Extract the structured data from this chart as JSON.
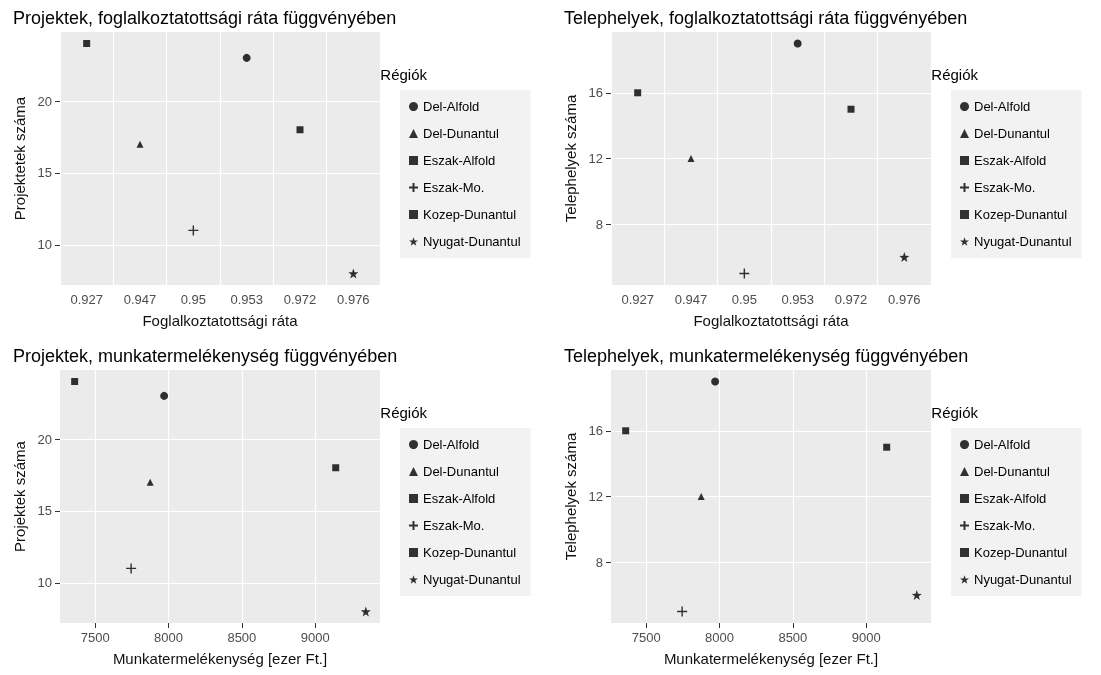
{
  "chart_data": [
    {
      "type": "scatter",
      "title": "Projektek, foglalkoztatottsági ráta függvényében",
      "xlabel": "Foglalkoztatottsági ráta",
      "ylabel": "Projektetek száma",
      "legend_title": "Régiók",
      "legend": "right",
      "grid": true,
      "categories": [
        "0.927",
        "0.947",
        "0.95",
        "0.953",
        "0.972",
        "0.976"
      ],
      "ylim": [
        7.2,
        24.8
      ],
      "yticks": [
        10,
        15,
        20
      ],
      "series": [
        {
          "name": "Del-Alfold",
          "color": "#000000",
          "marker": "circle",
          "x": [
            "0.953"
          ],
          "values": [
            23
          ]
        },
        {
          "name": "Del-Dunantul",
          "color": "#000000",
          "marker": "triangle",
          "x": [
            "0.947"
          ],
          "values": [
            17
          ]
        },
        {
          "name": "Eszak-Alfold",
          "color": "#000000",
          "marker": "square",
          "x": [
            "0.927"
          ],
          "values": [
            24
          ]
        },
        {
          "name": "Eszak-Mo.",
          "color": "#000000",
          "marker": "cross",
          "x": [
            "0.95"
          ],
          "values": [
            11
          ]
        },
        {
          "name": "Kozep-Dunantul",
          "color": "#000000",
          "marker": "square",
          "x": [
            "0.972"
          ],
          "values": [
            18
          ]
        },
        {
          "name": "Nyugat-Dunantul",
          "color": "#000000",
          "marker": "star",
          "x": [
            "0.976"
          ],
          "values": [
            8
          ]
        }
      ]
    },
    {
      "type": "scatter",
      "title": "Telephelyek, foglalkoztatottsági ráta függvényében",
      "xlabel": "Foglalkoztatottsági ráta",
      "ylabel": "Telephelyek száma",
      "legend_title": "Régiók",
      "legend": "right",
      "grid": true,
      "categories": [
        "0.927",
        "0.947",
        "0.95",
        "0.953",
        "0.972",
        "0.976"
      ],
      "ylim": [
        4.3,
        19.7
      ],
      "yticks": [
        8,
        12,
        16
      ],
      "series": [
        {
          "name": "Del-Alfold",
          "color": "#000000",
          "marker": "circle",
          "x": [
            "0.953"
          ],
          "values": [
            19
          ]
        },
        {
          "name": "Del-Dunantul",
          "color": "#000000",
          "marker": "triangle",
          "x": [
            "0.947"
          ],
          "values": [
            12
          ]
        },
        {
          "name": "Eszak-Alfold",
          "color": "#000000",
          "marker": "square",
          "x": [
            "0.927"
          ],
          "values": [
            16
          ]
        },
        {
          "name": "Eszak-Mo.",
          "color": "#000000",
          "marker": "cross",
          "x": [
            "0.95"
          ],
          "values": [
            5
          ]
        },
        {
          "name": "Kozep-Dunantul",
          "color": "#000000",
          "marker": "square",
          "x": [
            "0.972"
          ],
          "values": [
            15
          ]
        },
        {
          "name": "Nyugat-Dunantul",
          "color": "#000000",
          "marker": "star",
          "x": [
            "0.976"
          ],
          "values": [
            6
          ]
        }
      ]
    },
    {
      "type": "scatter",
      "title": "Projektek, munkatermelékenység függvényében",
      "xlabel": "Munkatermelékenység [ezer Ft.]",
      "ylabel": "Projektek száma",
      "legend_title": "Régiók",
      "legend": "right",
      "grid": true,
      "xlim": [
        7260,
        9442
      ],
      "xticks": [
        7500,
        8000,
        8500,
        9000
      ],
      "ylim": [
        7.2,
        24.8
      ],
      "yticks": [
        10,
        15,
        20
      ],
      "series": [
        {
          "name": "Del-Alfold",
          "color": "#000000",
          "marker": "circle",
          "x": [
            7970
          ],
          "values": [
            23
          ]
        },
        {
          "name": "Del-Dunantul",
          "color": "#000000",
          "marker": "triangle",
          "x": [
            7875
          ],
          "values": [
            17
          ]
        },
        {
          "name": "Eszak-Alfold",
          "color": "#000000",
          "marker": "square",
          "x": [
            7360
          ],
          "values": [
            24
          ]
        },
        {
          "name": "Eszak-Mo.",
          "color": "#000000",
          "marker": "cross",
          "x": [
            7745
          ],
          "values": [
            11
          ]
        },
        {
          "name": "Kozep-Dunantul",
          "color": "#000000",
          "marker": "square",
          "x": [
            9140
          ],
          "values": [
            18
          ]
        },
        {
          "name": "Nyugat-Dunantul",
          "color": "#000000",
          "marker": "star",
          "x": [
            9345
          ],
          "values": [
            8
          ]
        }
      ]
    },
    {
      "type": "scatter",
      "title": "Telephelyek, munkatermelékenység függvényében",
      "xlabel": "Munkatermelékenység [ezer Ft.]",
      "ylabel": "Telephelyek száma",
      "legend_title": "Régiók",
      "legend": "right",
      "grid": true,
      "xlim": [
        7260,
        9442
      ],
      "xticks": [
        7500,
        8000,
        8500,
        9000
      ],
      "ylim": [
        4.3,
        19.7
      ],
      "yticks": [
        8,
        12,
        16
      ],
      "series": [
        {
          "name": "Del-Alfold",
          "color": "#000000",
          "marker": "circle",
          "x": [
            7970
          ],
          "values": [
            19
          ]
        },
        {
          "name": "Del-Dunantul",
          "color": "#000000",
          "marker": "triangle",
          "x": [
            7875
          ],
          "values": [
            12
          ]
        },
        {
          "name": "Eszak-Alfold",
          "color": "#000000",
          "marker": "square",
          "x": [
            7360
          ],
          "values": [
            16
          ]
        },
        {
          "name": "Eszak-Mo.",
          "color": "#000000",
          "marker": "cross",
          "x": [
            7745
          ],
          "values": [
            5
          ]
        },
        {
          "name": "Kozep-Dunantul",
          "color": "#000000",
          "marker": "square",
          "x": [
            9140
          ],
          "values": [
            15
          ]
        },
        {
          "name": "Nyugat-Dunantul",
          "color": "#000000",
          "marker": "star",
          "x": [
            9345
          ],
          "values": [
            6
          ]
        }
      ]
    }
  ]
}
